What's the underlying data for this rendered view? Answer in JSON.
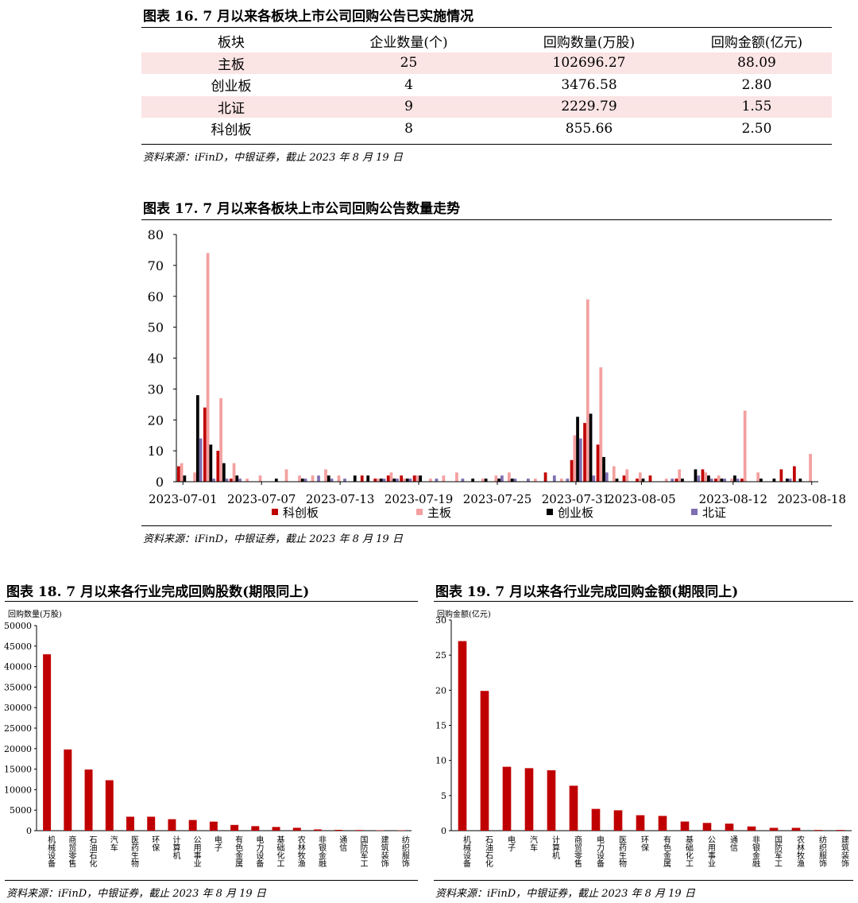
{
  "table16": {
    "title": "图表 16. 7 月以来各板块上市公司回购公告已实施情况",
    "headers": [
      "板块",
      "企业数量(个)",
      "回购数量(万股)",
      "回购金额(亿元)"
    ],
    "rows": [
      [
        "主板",
        "25",
        "102696.27",
        "88.09"
      ],
      [
        "创业板",
        "4",
        "3476.58",
        "2.80"
      ],
      [
        "北证",
        "9",
        "2229.79",
        "1.55"
      ],
      [
        "科创板",
        "8",
        "855.66",
        "2.50"
      ]
    ],
    "source": "资料来源：iFinD，中银证券，截止 2023 年 8 月 19 日"
  },
  "fig17": {
    "title": "图表 17. 7 月以来各板块上市公司回购公告数量走势",
    "source": "资料来源：iFinD，中银证券，截止 2023 年 8 月 19 日"
  },
  "fig18": {
    "title": "图表 18. 7 月以来各行业完成回购股数(期限同上)",
    "unit": "回购数量(万股)",
    "source": "资料来源：iFinD，中银证券，截止 2023 年 8 月 19 日"
  },
  "fig19": {
    "title": "图表 19. 7 月以来各行业完成回购金额(期限同上)",
    "unit": "回购金额(亿元)",
    "source": "资料来源：iFinD，中银证券，截止 2023 年 8 月 19 日"
  },
  "colors": {
    "kechuang": "#c00000",
    "zhuban": "#f4a0a0",
    "chuangye": "#000000",
    "beizheng": "#7f6fb0",
    "bar": "#c00000",
    "shade": "#fbe4e4"
  },
  "chart_data": [
    {
      "type": "bar",
      "ylim": [
        0,
        80
      ],
      "yticks": [
        0,
        10,
        20,
        30,
        40,
        50,
        60,
        70,
        80
      ],
      "x": [
        "2023-07-01",
        "2023-07-02",
        "2023-07-03",
        "2023-07-04",
        "2023-07-05",
        "2023-07-06",
        "2023-07-07",
        "2023-07-08",
        "2023-07-09",
        "2023-07-10",
        "2023-07-11",
        "2023-07-12",
        "2023-07-13",
        "2023-07-14",
        "2023-07-15",
        "2023-07-16",
        "2023-07-17",
        "2023-07-18",
        "2023-07-19",
        "2023-07-20",
        "2023-07-21",
        "2023-07-22",
        "2023-07-23",
        "2023-07-24",
        "2023-07-25",
        "2023-07-26",
        "2023-07-27",
        "2023-07-28",
        "2023-07-29",
        "2023-07-30",
        "2023-07-31",
        "2023-08-01",
        "2023-08-02",
        "2023-08-03",
        "2023-08-04",
        "2023-08-05",
        "2023-08-06",
        "2023-08-07",
        "2023-08-08",
        "2023-08-09",
        "2023-08-10",
        "2023-08-11",
        "2023-08-12",
        "2023-08-13",
        "2023-08-14",
        "2023-08-15",
        "2023-08-16",
        "2023-08-17",
        "2023-08-18"
      ],
      "xtick_labels": [
        "2023-07-01",
        "2023-07-07",
        "2023-07-13",
        "2023-07-19",
        "2023-07-25",
        "2023-07-31",
        "2023-08-05",
        "2023-08-12",
        "2023-08-18"
      ],
      "series": [
        {
          "name": "科创板",
          "values": [
            5,
            0,
            24,
            10,
            1,
            0,
            0,
            0,
            0,
            0,
            0,
            0,
            0,
            0,
            2,
            1,
            2,
            2,
            2,
            0,
            0,
            0,
            0,
            0,
            0,
            0,
            0,
            0,
            3,
            0,
            7,
            19,
            12,
            0,
            2,
            1,
            2,
            0,
            1,
            0,
            4,
            1,
            0,
            1,
            0,
            0,
            4,
            5,
            0
          ]
        },
        {
          "name": "主板",
          "values": [
            6,
            3,
            74,
            27,
            6,
            1,
            2,
            0,
            4,
            2,
            2,
            4,
            2,
            0,
            0,
            1,
            3,
            1,
            2,
            1,
            2,
            3,
            0,
            1,
            2,
            3,
            0,
            1,
            0,
            1,
            15,
            59,
            37,
            5,
            4,
            3,
            0,
            1,
            4,
            0,
            3,
            2,
            1,
            23,
            3,
            0,
            0,
            0,
            9
          ]
        },
        {
          "name": "创业板",
          "values": [
            2,
            28,
            12,
            6,
            2,
            0,
            0,
            1,
            0,
            1,
            0,
            2,
            0,
            2,
            2,
            1,
            1,
            1,
            2,
            0,
            0,
            0,
            1,
            1,
            1,
            1,
            0,
            0,
            0,
            0,
            21,
            22,
            8,
            1,
            0,
            1,
            0,
            0,
            1,
            4,
            2,
            1,
            2,
            0,
            1,
            1,
            1,
            1,
            0
          ]
        },
        {
          "name": "北证",
          "values": [
            0,
            14,
            1,
            1,
            1,
            0,
            0,
            0,
            0,
            1,
            2,
            1,
            1,
            0,
            0,
            1,
            1,
            1,
            0,
            1,
            0,
            1,
            0,
            0,
            2,
            1,
            1,
            0,
            2,
            1,
            14,
            2,
            3,
            0,
            0,
            0,
            0,
            1,
            0,
            2,
            1,
            1,
            1,
            0,
            0,
            0,
            1,
            0,
            0
          ]
        }
      ]
    },
    {
      "type": "bar",
      "ylabel": "回购数量(万股)",
      "ylim": [
        0,
        50000
      ],
      "yticks": [
        0,
        5000,
        10000,
        15000,
        20000,
        25000,
        30000,
        35000,
        40000,
        45000,
        50000
      ],
      "categories": [
        "机械设备",
        "商贸零售",
        "石油石化",
        "汽车",
        "医药生物",
        "环保",
        "计算机",
        "公用事业",
        "电子",
        "有色金属",
        "电力设备",
        "基础化工",
        "农林牧渔",
        "非银金融",
        "通信",
        "国防军工",
        "建筑装饰",
        "纺织服饰"
      ],
      "values": [
        43000,
        19800,
        14900,
        12300,
        3400,
        3400,
        2800,
        2600,
        2200,
        1400,
        1100,
        900,
        700,
        300,
        200,
        150,
        100,
        100
      ]
    },
    {
      "type": "bar",
      "ylabel": "回购金额(亿元)",
      "ylim": [
        0,
        30
      ],
      "yticks": [
        0,
        5,
        10,
        15,
        20,
        25,
        30
      ],
      "categories": [
        "机械设备",
        "石油石化",
        "电子",
        "汽车",
        "计算机",
        "商贸零售",
        "电力设备",
        "医药生物",
        "环保",
        "有色金属",
        "基础化工",
        "公用事业",
        "通信",
        "非银金融",
        "国防军工",
        "农林牧渔",
        "纺织服饰",
        "建筑装饰"
      ],
      "values": [
        27,
        19.9,
        9.1,
        8.9,
        8.6,
        6.4,
        3.1,
        2.9,
        2.2,
        2.1,
        1.3,
        1.1,
        1.0,
        0.6,
        0.4,
        0.4,
        0.1,
        0.1
      ]
    }
  ]
}
